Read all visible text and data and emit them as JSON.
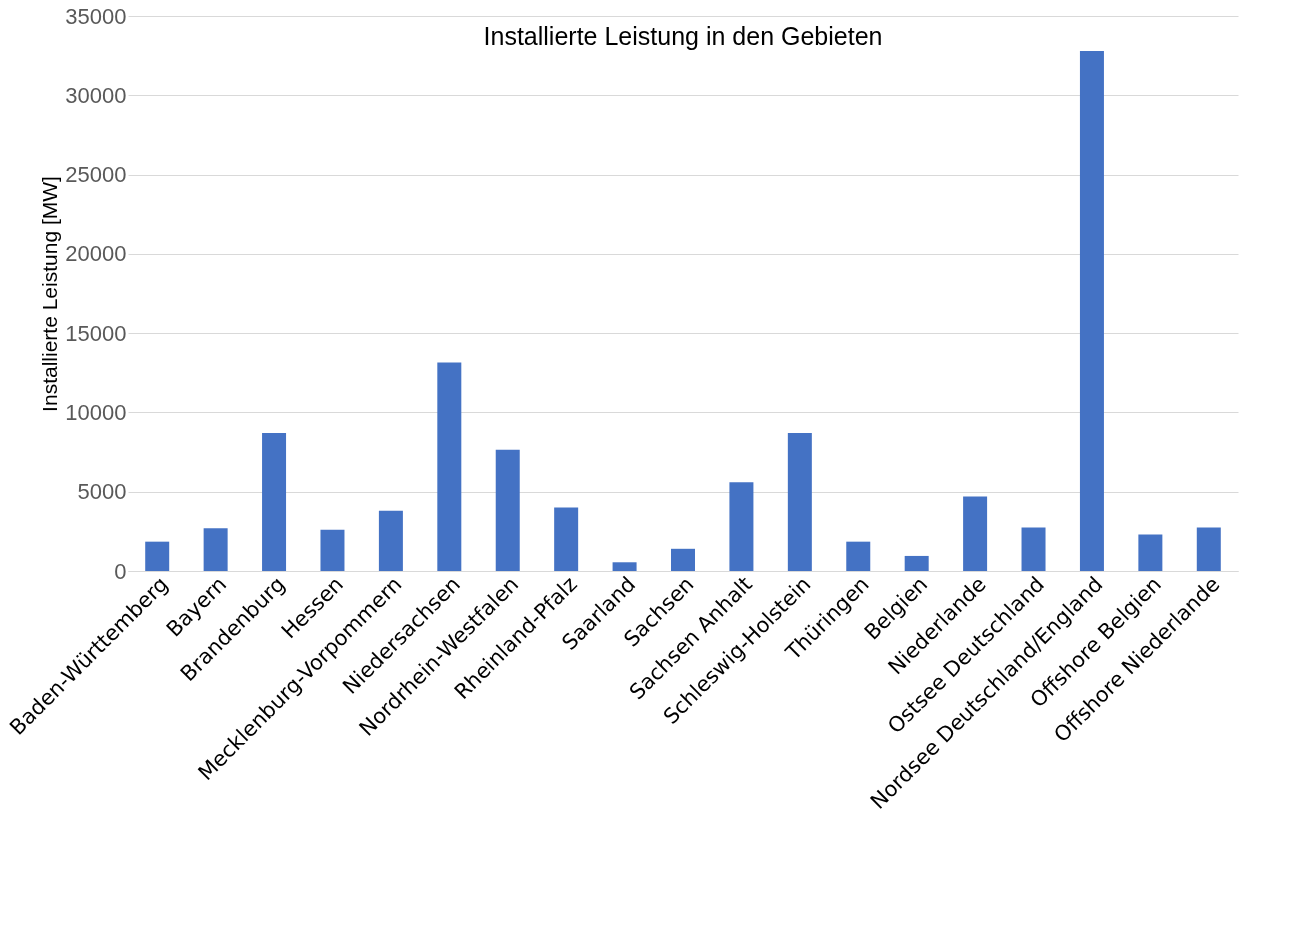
{
  "chart_data": {
    "type": "bar",
    "title": "Installierte Leistung in den Gebieten",
    "ylabel": "Installierte Leistung [MW]",
    "categories": [
      "Baden-Württemberg",
      "Bayern",
      "Brandenburg",
      "Hessen",
      "Mecklenburg-Vorpommern",
      "Niedersachsen",
      "Nordrhein-Westfalen",
      "Rheinland-Pfalz",
      "Saarland",
      "Sachsen",
      "Sachsen Anhalt",
      "Schleswig-Holstein",
      "Thüringen",
      "Belgien",
      "Niederlande",
      "Ostsee Deutschland",
      "Nordsee Deutschland/England",
      "Offshore Belgien",
      "Offshore Niederlande"
    ],
    "values": [
      1850,
      2700,
      8700,
      2600,
      3800,
      13150,
      7650,
      4000,
      550,
      1400,
      5600,
      8700,
      1850,
      950,
      4700,
      2750,
      32800,
      2300,
      2750
    ],
    "color": "#4472c4",
    "ylim": [
      0,
      35000
    ],
    "yticks": [
      0,
      5000,
      10000,
      15000,
      20000,
      25000,
      30000,
      35000
    ],
    "grid": "y"
  }
}
